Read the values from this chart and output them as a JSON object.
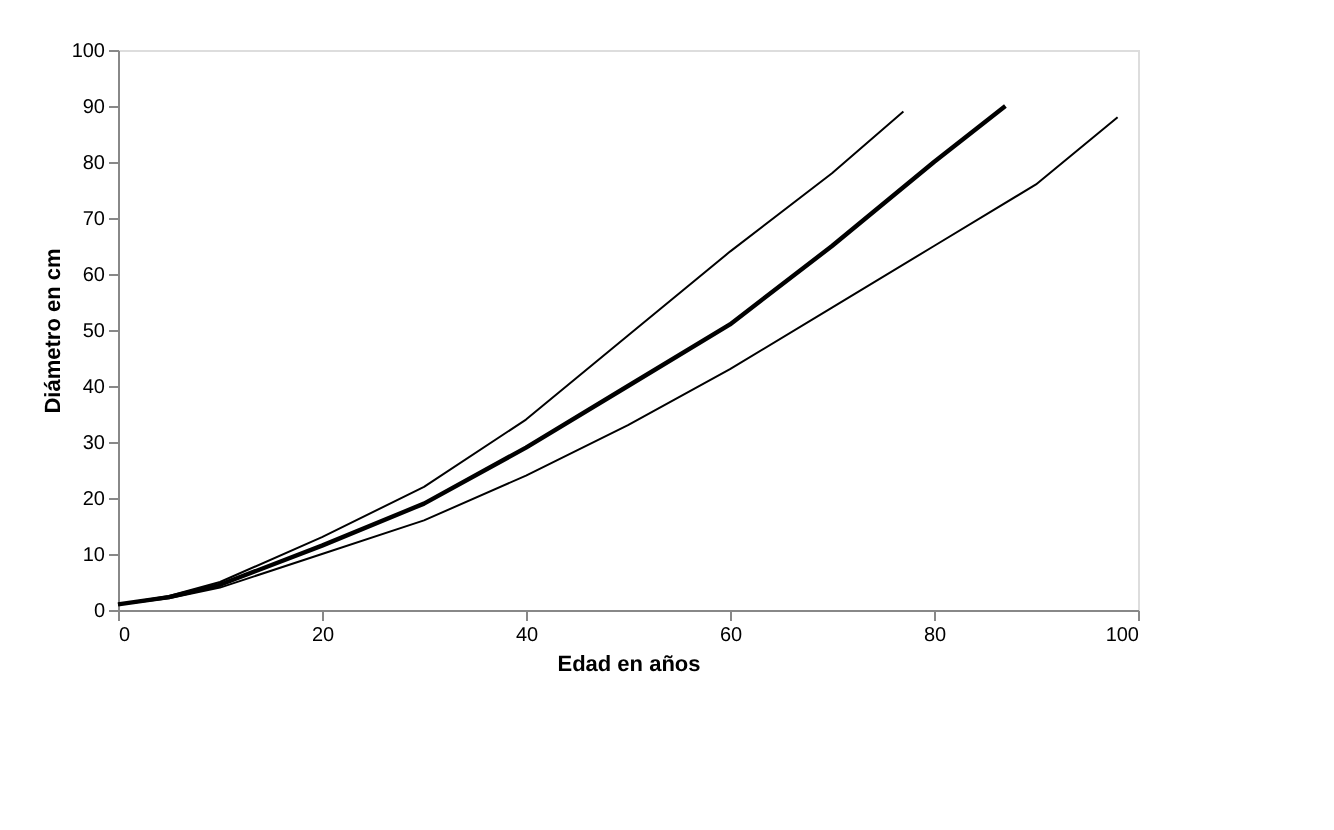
{
  "chart_data": {
    "type": "line",
    "xlabel": "Edad en años",
    "ylabel": "Diámetro en cm",
    "xlim": [
      0,
      100
    ],
    "xticks": [
      0,
      20,
      40,
      60,
      80,
      100
    ],
    "ylim": [
      0,
      100
    ],
    "yticks": [
      0,
      10,
      20,
      30,
      40,
      50,
      60,
      70,
      80,
      90,
      100
    ],
    "grid": false,
    "marker": "none",
    "line_style": "solid",
    "series": [
      {
        "color": "#000000",
        "x": [
          0,
          5,
          10,
          20,
          30,
          40,
          50,
          60,
          70,
          77
        ],
        "values": [
          1,
          2.5,
          5,
          13,
          22,
          34,
          49,
          64,
          78,
          89
        ]
      },
      {
        "color": "#000000",
        "x": [
          0,
          5,
          10,
          20,
          30,
          40,
          50,
          60,
          70,
          80,
          87
        ],
        "values": [
          1,
          2.3,
          4.5,
          11.5,
          19,
          29,
          40,
          51,
          65,
          80,
          90
        ]
      },
      {
        "color": "#000000",
        "x": [
          0,
          5,
          10,
          20,
          30,
          40,
          50,
          60,
          70,
          80,
          90,
          98
        ],
        "values": [
          1,
          2.1,
          4,
          10,
          16,
          24,
          33,
          43,
          54,
          65,
          76,
          88
        ]
      }
    ]
  }
}
